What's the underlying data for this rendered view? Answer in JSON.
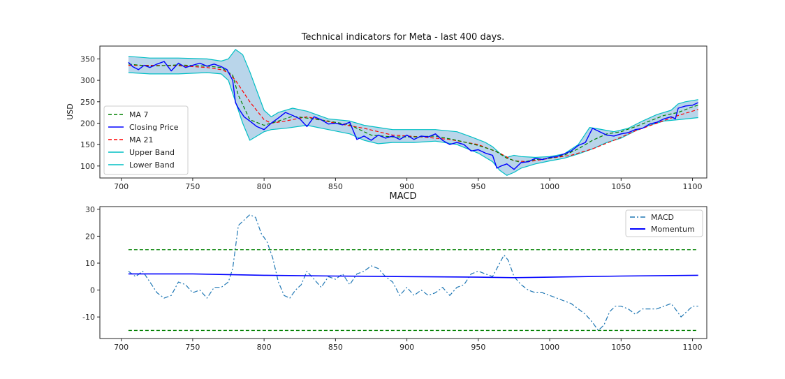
{
  "chart_data": [
    {
      "type": "line",
      "title": "Technical indicators for Meta - last 400 days.",
      "xlabel": "",
      "ylabel": "USD",
      "xlim": [
        685,
        1110
      ],
      "ylim": [
        72,
        380
      ],
      "xticks": [
        700,
        750,
        800,
        850,
        900,
        950,
        1000,
        1050,
        1100
      ],
      "yticks": [
        100,
        150,
        200,
        250,
        300,
        350
      ],
      "grid": false,
      "legend_position": "lower-left",
      "series": [
        {
          "name": "MA 7",
          "color": "#008000",
          "style": "dashed",
          "x": [
            705,
            720,
            740,
            760,
            770,
            778,
            782,
            790,
            800,
            810,
            820,
            830,
            845,
            860,
            875,
            890,
            905,
            920,
            935,
            950,
            962,
            970,
            980,
            990,
            1000,
            1010,
            1020,
            1030,
            1040,
            1050,
            1060,
            1070,
            1080,
            1090,
            1100,
            1104
          ],
          "y": [
            338,
            333,
            336,
            333,
            330,
            312,
            265,
            208,
            195,
            205,
            216,
            212,
            205,
            196,
            172,
            168,
            168,
            170,
            160,
            148,
            135,
            118,
            108,
            115,
            118,
            125,
            140,
            160,
            175,
            180,
            192,
            205,
            218,
            225,
            238,
            242
          ]
        },
        {
          "name": "Closing Price",
          "color": "#0000ff",
          "style": "solid",
          "x": [
            705,
            708,
            712,
            716,
            720,
            725,
            730,
            735,
            740,
            745,
            750,
            755,
            760,
            765,
            770,
            774,
            778,
            780,
            782,
            786,
            790,
            795,
            800,
            805,
            810,
            815,
            820,
            825,
            830,
            835,
            840,
            845,
            850,
            855,
            860,
            865,
            870,
            875,
            880,
            885,
            890,
            895,
            900,
            905,
            910,
            915,
            920,
            925,
            930,
            935,
            940,
            945,
            950,
            955,
            960,
            963,
            966,
            970,
            975,
            980,
            985,
            990,
            995,
            1000,
            1005,
            1010,
            1015,
            1020,
            1025,
            1028,
            1030,
            1035,
            1040,
            1045,
            1050,
            1055,
            1060,
            1065,
            1070,
            1075,
            1080,
            1085,
            1088,
            1090,
            1095,
            1100,
            1104
          ],
          "y": [
            342,
            332,
            325,
            335,
            330,
            338,
            344,
            322,
            340,
            330,
            335,
            340,
            333,
            338,
            332,
            325,
            300,
            248,
            235,
            215,
            205,
            192,
            185,
            200,
            212,
            225,
            218,
            210,
            192,
            215,
            208,
            198,
            200,
            196,
            202,
            162,
            170,
            160,
            172,
            165,
            170,
            162,
            172,
            162,
            170,
            168,
            175,
            160,
            150,
            155,
            150,
            135,
            138,
            130,
            125,
            95,
            100,
            105,
            92,
            108,
            110,
            118,
            115,
            120,
            122,
            128,
            135,
            148,
            155,
            175,
            188,
            180,
            172,
            170,
            175,
            178,
            185,
            188,
            198,
            202,
            210,
            215,
            210,
            235,
            240,
            242,
            248
          ]
        },
        {
          "name": "MA 21",
          "color": "#ff0000",
          "style": "dashed",
          "x": [
            705,
            720,
            740,
            760,
            770,
            775,
            780,
            790,
            800,
            805,
            815,
            830,
            850,
            870,
            890,
            910,
            930,
            950,
            965,
            975,
            985,
            1000,
            1015,
            1030,
            1045,
            1060,
            1075,
            1090,
            1104
          ],
          "y": [
            335,
            335,
            334,
            330,
            325,
            318,
            300,
            250,
            208,
            200,
            205,
            215,
            200,
            188,
            172,
            168,
            162,
            150,
            130,
            112,
            110,
            118,
            125,
            140,
            160,
            182,
            200,
            218,
            232
          ]
        },
        {
          "name": "Upper Band",
          "color": "#00bfc4",
          "style": "solid",
          "x": [
            705,
            720,
            740,
            760,
            770,
            775,
            780,
            785,
            790,
            800,
            805,
            810,
            820,
            830,
            845,
            860,
            870,
            880,
            890,
            905,
            920,
            935,
            945,
            955,
            960,
            965,
            970,
            975,
            980,
            990,
            1000,
            1010,
            1020,
            1025,
            1028,
            1035,
            1045,
            1055,
            1065,
            1075,
            1085,
            1090,
            1095,
            1104
          ],
          "y": [
            356,
            352,
            352,
            350,
            345,
            350,
            372,
            360,
            320,
            230,
            215,
            225,
            235,
            228,
            210,
            205,
            195,
            190,
            185,
            185,
            185,
            180,
            168,
            155,
            145,
            130,
            120,
            125,
            122,
            120,
            122,
            128,
            150,
            175,
            190,
            186,
            180,
            188,
            205,
            220,
            230,
            245,
            250,
            255
          ]
        },
        {
          "name": "Lower Band",
          "color": "#00bfc4",
          "style": "solid",
          "x": [
            705,
            720,
            740,
            760,
            770,
            775,
            780,
            785,
            790,
            795,
            800,
            805,
            815,
            830,
            845,
            860,
            870,
            880,
            890,
            905,
            920,
            935,
            950,
            960,
            965,
            970,
            975,
            980,
            990,
            1000,
            1010,
            1020,
            1030,
            1040,
            1050,
            1060,
            1070,
            1080,
            1090,
            1104
          ],
          "y": [
            318,
            315,
            315,
            318,
            315,
            300,
            250,
            200,
            160,
            170,
            180,
            185,
            188,
            195,
            185,
            175,
            160,
            152,
            155,
            155,
            158,
            150,
            130,
            110,
            90,
            78,
            85,
            95,
            105,
            112,
            118,
            128,
            140,
            155,
            165,
            182,
            195,
            205,
            208,
            213
          ]
        }
      ]
    },
    {
      "type": "line",
      "title": "MACD",
      "xlabel": "",
      "ylabel": "",
      "xlim": [
        685,
        1110
      ],
      "ylim": [
        -18,
        31
      ],
      "xticks": [
        700,
        750,
        800,
        850,
        900,
        950,
        1000,
        1050,
        1100
      ],
      "yticks": [
        -10,
        0,
        10,
        20,
        30
      ],
      "grid": false,
      "legend_position": "top-right",
      "thresholds": [
        15,
        -15
      ],
      "threshold_color": "#008000",
      "threshold_x": [
        705,
        1104
      ],
      "series": [
        {
          "name": "MACD",
          "color": "#1f77b4",
          "style": "dashdot",
          "x": [
            705,
            710,
            715,
            720,
            725,
            730,
            735,
            740,
            745,
            750,
            755,
            760,
            765,
            770,
            775,
            778,
            782,
            786,
            790,
            794,
            798,
            802,
            806,
            810,
            814,
            818,
            822,
            826,
            830,
            835,
            840,
            845,
            850,
            855,
            860,
            865,
            870,
            875,
            880,
            885,
            890,
            895,
            900,
            905,
            910,
            915,
            920,
            925,
            930,
            935,
            940,
            945,
            950,
            955,
            960,
            965,
            968,
            971,
            975,
            980,
            985,
            990,
            995,
            1000,
            1005,
            1010,
            1015,
            1020,
            1025,
            1030,
            1034,
            1038,
            1042,
            1046,
            1050,
            1055,
            1060,
            1065,
            1070,
            1075,
            1080,
            1085,
            1088,
            1092,
            1096,
            1100,
            1104
          ],
          "y": [
            7,
            5,
            7,
            3,
            -1,
            -3,
            -2,
            3,
            2,
            -1,
            0,
            -3,
            1,
            1,
            3,
            8,
            24,
            26,
            28,
            27,
            21,
            18,
            12,
            3,
            -2,
            -3,
            0,
            2,
            7,
            4,
            1,
            5,
            4,
            6,
            2,
            6,
            7,
            9,
            8,
            5,
            3,
            -2,
            1,
            -2,
            0,
            -2,
            -1,
            1,
            -2,
            1,
            2,
            6,
            7,
            6,
            5,
            10,
            13,
            11,
            5,
            2,
            0,
            -1,
            -1,
            -2,
            -3,
            -4,
            -5,
            -7,
            -9,
            -12,
            -15,
            -13,
            -8,
            -6,
            -6,
            -7,
            -9,
            -7,
            -7,
            -7,
            -6,
            -5,
            -7,
            -10,
            -8,
            -6,
            -6
          ]
        },
        {
          "name": "Momentum",
          "color": "#0000ff",
          "style": "solid",
          "x": [
            705,
            750,
            800,
            850,
            900,
            950,
            975,
            1000,
            1050,
            1104
          ],
          "y": [
            6,
            6,
            5.5,
            5.2,
            5,
            4.8,
            4.6,
            4.8,
            5.2,
            5.5
          ]
        }
      ]
    }
  ]
}
